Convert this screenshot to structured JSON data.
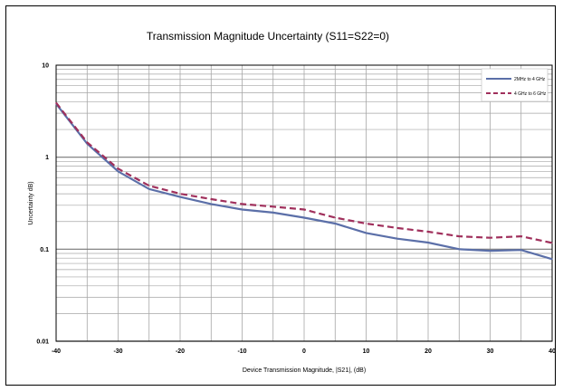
{
  "chart_data": {
    "type": "line",
    "title": "Transmission  Magnitude Uncertainty (S11=S22=0)",
    "xlabel": "Device Transmission Magnitude,  |S21|, (dB)",
    "ylabel": "Uncertainty dB)",
    "xlim": [
      -40,
      40
    ],
    "ylim": [
      0.01,
      10
    ],
    "yscale": "log",
    "grid": true,
    "legend_position": "top-right",
    "x_ticks": [
      "-40",
      "-30",
      "-20",
      "-10",
      "0",
      "10",
      "20",
      "30",
      "40"
    ],
    "y_ticks": [
      "0.01",
      "0.1",
      "1",
      "10"
    ],
    "x": [
      -40,
      -35,
      -30,
      -25,
      -20,
      -15,
      -10,
      -5,
      0,
      5,
      10,
      15,
      20,
      25,
      30,
      35,
      40
    ],
    "series": [
      {
        "name": "2MHz to 4 GHz",
        "color": "#5B6FA8",
        "dash": "solid",
        "values": [
          3.8,
          1.4,
          0.7,
          0.45,
          0.37,
          0.31,
          0.27,
          0.25,
          0.22,
          0.19,
          0.15,
          0.13,
          0.118,
          0.1,
          0.096,
          0.098,
          0.078
        ]
      },
      {
        "name": "4 GHz to 6 GHz",
        "color": "#A0305C",
        "dash": "dashed",
        "values": [
          3.9,
          1.45,
          0.75,
          0.49,
          0.4,
          0.35,
          0.31,
          0.29,
          0.27,
          0.22,
          0.19,
          0.17,
          0.155,
          0.138,
          0.133,
          0.138,
          0.117
        ]
      }
    ]
  }
}
